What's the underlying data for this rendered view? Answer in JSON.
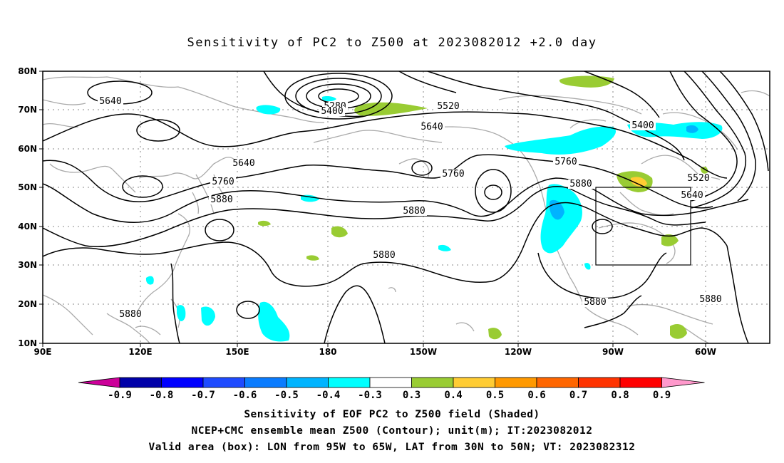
{
  "title": "Sensitivity of PC2 to Z500 at 2023082012 +2.0 day",
  "axes": {
    "lat_labels": [
      "80N",
      "70N",
      "60N",
      "50N",
      "40N",
      "30N",
      "20N",
      "10N"
    ],
    "lon_labels": [
      "90E",
      "120E",
      "150E",
      "180",
      "150W",
      "120W",
      "90W",
      "60W"
    ]
  },
  "contour_labels": [
    "5640",
    "5280",
    "5400",
    "5520",
    "5640",
    "5400",
    "5640",
    "5760",
    "5760",
    "5760",
    "5880",
    "5880",
    "5880",
    "5880",
    "5880",
    "5880",
    "5880",
    "5520",
    "5640",
    "5880"
  ],
  "colorbar": {
    "labels": [
      "-0.9",
      "-0.8",
      "-0.7",
      "-0.6",
      "-0.5",
      "-0.4",
      "-0.3",
      "0.3",
      "0.4",
      "0.5",
      "0.6",
      "0.7",
      "0.8",
      "0.9"
    ],
    "colors": [
      "#0000a8",
      "#0000ff",
      "#1f4bff",
      "#0a7cff",
      "#00b4ff",
      "#00ffff",
      "#ffffff",
      "#99cc33",
      "#ffcc33",
      "#ff9900",
      "#ff6600",
      "#ff3300",
      "#ff0000"
    ],
    "low_arrow_color": "#cc0099",
    "high_arrow_color": "#ff99cc"
  },
  "captions": [
    "Sensitivity of EOF PC2 to Z500 field (Shaded)",
    "NCEP+CMC ensemble mean Z500 (Contour); unit(m); IT:2023082012",
    "Valid area (box): LON from 95W to 65W, LAT from 30N to 50N; VT: 2023082312"
  ]
}
